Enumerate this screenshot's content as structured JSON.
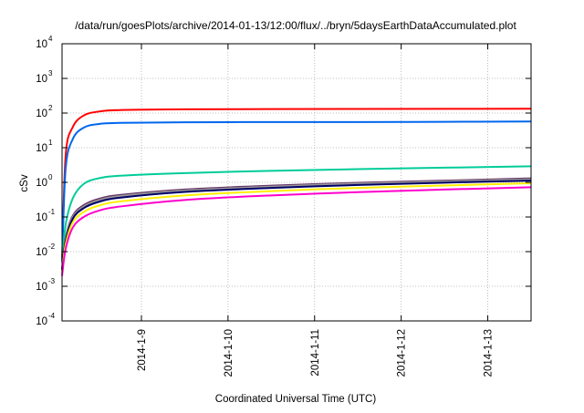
{
  "chart_data": {
    "type": "line",
    "title": "/data/run/goesPlots/archive/2014-01-13/12:00/flux/../bryn/5daysEarthDataAccumulated.plot",
    "xlabel": "Coordinated Universal Time (UTC)",
    "ylabel": "cSv",
    "y_scale": "log",
    "ylim": [
      0.0001,
      10000
    ],
    "xlim": [
      "2014-01-08T02:00",
      "2014-01-13T12:00"
    ],
    "grid": true,
    "legend": "none",
    "y_ticks": [
      {
        "base": "10",
        "exp": "-4"
      },
      {
        "base": "10",
        "exp": "-3"
      },
      {
        "base": "10",
        "exp": "-2"
      },
      {
        "base": "10",
        "exp": "-1"
      },
      {
        "base": "10",
        "exp": "0"
      },
      {
        "base": "10",
        "exp": "1"
      },
      {
        "base": "10",
        "exp": "2"
      },
      {
        "base": "10",
        "exp": "3"
      },
      {
        "base": "10",
        "exp": "4"
      }
    ],
    "x_ticks": [
      {
        "label": "2014-1-9",
        "t": "2014-01-09T00:00"
      },
      {
        "label": "2014-1-10",
        "t": "2014-01-10T00:00"
      },
      {
        "label": "2014-1-11",
        "t": "2014-01-11T00:00"
      },
      {
        "label": "2014-1-12",
        "t": "2014-01-12T00:00"
      },
      {
        "label": "2014-1-13",
        "t": "2014-01-13T00:00"
      }
    ],
    "series": [
      {
        "color": "#ff0000",
        "points": [
          [
            "2014-01-08T02:00",
            0.005
          ],
          [
            "2014-01-08T03:00",
            6
          ],
          [
            "2014-01-08T05:00",
            40
          ],
          [
            "2014-01-08T08:00",
            85
          ],
          [
            "2014-01-08T12:00",
            110
          ],
          [
            "2014-01-08T18:00",
            122
          ],
          [
            "2014-01-09T12:00",
            128
          ],
          [
            "2014-01-10T12:00",
            130
          ],
          [
            "2014-01-11T12:00",
            131
          ],
          [
            "2014-01-12T12:00",
            132
          ],
          [
            "2014-01-13T12:00",
            133
          ]
        ]
      },
      {
        "color": "#0066ee",
        "points": [
          [
            "2014-01-08T02:00",
            0.005
          ],
          [
            "2014-01-08T03:00",
            2.5
          ],
          [
            "2014-01-08T05:00",
            18
          ],
          [
            "2014-01-08T08:00",
            38
          ],
          [
            "2014-01-08T12:00",
            48
          ],
          [
            "2014-01-08T18:00",
            52
          ],
          [
            "2014-01-09T12:00",
            54
          ],
          [
            "2014-01-10T12:00",
            55
          ],
          [
            "2014-01-11T12:00",
            55
          ],
          [
            "2014-01-12T12:00",
            56
          ],
          [
            "2014-01-13T12:00",
            57
          ]
        ]
      },
      {
        "color": "#00cc99",
        "points": [
          [
            "2014-01-08T02:00",
            0.005
          ],
          [
            "2014-01-08T03:00",
            0.06
          ],
          [
            "2014-01-08T05:00",
            0.35
          ],
          [
            "2014-01-08T08:00",
            0.9
          ],
          [
            "2014-01-08T12:00",
            1.3
          ],
          [
            "2014-01-08T18:00",
            1.55
          ],
          [
            "2014-01-09T12:00",
            1.85
          ],
          [
            "2014-01-10T12:00",
            2.15
          ],
          [
            "2014-01-11T12:00",
            2.4
          ],
          [
            "2014-01-12T12:00",
            2.65
          ],
          [
            "2014-01-13T12:00",
            2.9
          ]
        ]
      },
      {
        "color": "#663366",
        "points": [
          [
            "2014-01-08T02:00",
            0.003
          ],
          [
            "2014-01-08T03:00",
            0.025
          ],
          [
            "2014-01-08T05:00",
            0.11
          ],
          [
            "2014-01-08T08:00",
            0.22
          ],
          [
            "2014-01-08T12:00",
            0.33
          ],
          [
            "2014-01-08T18:00",
            0.43
          ],
          [
            "2014-01-09T12:00",
            0.62
          ],
          [
            "2014-01-10T12:00",
            0.8
          ],
          [
            "2014-01-11T12:00",
            0.97
          ],
          [
            "2014-01-12T12:00",
            1.12
          ],
          [
            "2014-01-13T12:00",
            1.3
          ]
        ]
      },
      {
        "color": "#999999",
        "points": [
          [
            "2014-01-08T02:00",
            0.003
          ],
          [
            "2014-01-08T03:00",
            0.023
          ],
          [
            "2014-01-08T05:00",
            0.1
          ],
          [
            "2014-01-08T08:00",
            0.2
          ],
          [
            "2014-01-08T12:00",
            0.3
          ],
          [
            "2014-01-08T18:00",
            0.4
          ],
          [
            "2014-01-09T12:00",
            0.58
          ],
          [
            "2014-01-10T12:00",
            0.75
          ],
          [
            "2014-01-11T12:00",
            0.92
          ],
          [
            "2014-01-12T12:00",
            1.06
          ],
          [
            "2014-01-13T12:00",
            1.22
          ]
        ]
      },
      {
        "color": "#000066",
        "points": [
          [
            "2014-01-08T02:00",
            0.003
          ],
          [
            "2014-01-08T03:00",
            0.02
          ],
          [
            "2014-01-08T05:00",
            0.09
          ],
          [
            "2014-01-08T08:00",
            0.18
          ],
          [
            "2014-01-08T12:00",
            0.27
          ],
          [
            "2014-01-08T18:00",
            0.36
          ],
          [
            "2014-01-09T12:00",
            0.53
          ],
          [
            "2014-01-10T12:00",
            0.69
          ],
          [
            "2014-01-11T12:00",
            0.84
          ],
          [
            "2014-01-12T12:00",
            0.98
          ],
          [
            "2014-01-13T12:00",
            1.12
          ]
        ]
      },
      {
        "color": "#ffee00",
        "points": [
          [
            "2014-01-08T02:00",
            0.0025
          ],
          [
            "2014-01-08T03:00",
            0.016
          ],
          [
            "2014-01-08T05:00",
            0.07
          ],
          [
            "2014-01-08T08:00",
            0.14
          ],
          [
            "2014-01-08T12:00",
            0.21
          ],
          [
            "2014-01-08T18:00",
            0.28
          ],
          [
            "2014-01-09T12:00",
            0.42
          ],
          [
            "2014-01-10T12:00",
            0.56
          ],
          [
            "2014-01-11T12:00",
            0.69
          ],
          [
            "2014-01-12T12:00",
            0.81
          ],
          [
            "2014-01-13T12:00",
            0.94
          ]
        ]
      },
      {
        "color": "#ff00cc",
        "points": [
          [
            "2014-01-08T02:00",
            0.002
          ],
          [
            "2014-01-08T03:00",
            0.012
          ],
          [
            "2014-01-08T05:00",
            0.05
          ],
          [
            "2014-01-08T08:00",
            0.1
          ],
          [
            "2014-01-08T12:00",
            0.15
          ],
          [
            "2014-01-08T18:00",
            0.2
          ],
          [
            "2014-01-09T12:00",
            0.31
          ],
          [
            "2014-01-10T12:00",
            0.42
          ],
          [
            "2014-01-11T12:00",
            0.52
          ],
          [
            "2014-01-12T12:00",
            0.62
          ],
          [
            "2014-01-13T12:00",
            0.72
          ]
        ]
      }
    ]
  }
}
